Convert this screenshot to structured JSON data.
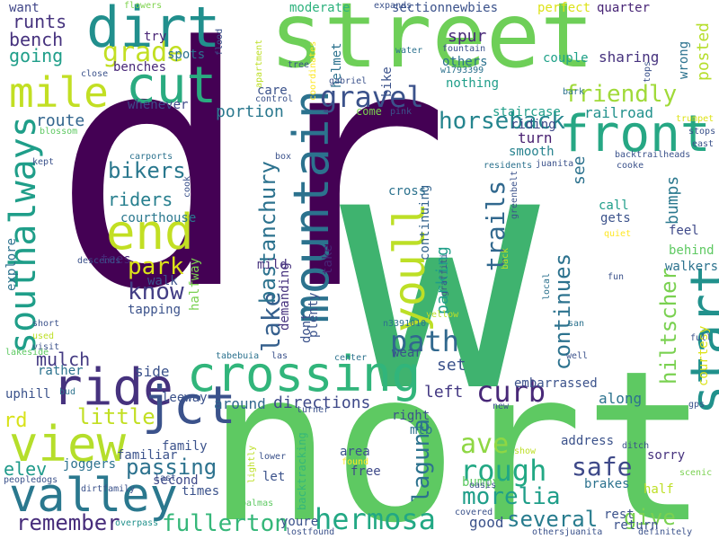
{
  "colors": {
    "background": "#ffffff",
    "palette": [
      "#440154",
      "#3b528b",
      "#21918c",
      "#5ec962",
      "#fde725"
    ]
  },
  "words": [
    {
      "text": "dr",
      "color": "#440154"
    },
    {
      "text": "w",
      "color": "#3fb36f"
    },
    {
      "text": "north",
      "color": "#5ec962"
    },
    {
      "text": "street",
      "color": "#6ecf58"
    },
    {
      "text": "crossing",
      "color": "#31b57b"
    },
    {
      "text": "mountain",
      "color": "#2c728e"
    },
    {
      "text": "front",
      "color": "#26a784"
    },
    {
      "text": "start",
      "color": "#21918c"
    },
    {
      "text": "dirt",
      "color": "#218f8d"
    },
    {
      "text": "cut",
      "color": "#2aab80"
    },
    {
      "text": "mile",
      "color": "#c2df23"
    },
    {
      "text": "end",
      "color": "#c2df23"
    },
    {
      "text": "ride",
      "color": "#46327e"
    },
    {
      "text": "view",
      "color": "#b5de2b"
    },
    {
      "text": "valley",
      "color": "#2a788e"
    },
    {
      "text": "jct",
      "color": "#3b528b"
    },
    {
      "text": "southalways",
      "color": "#1f9e89"
    },
    {
      "text": "youll",
      "color": "#bddf26"
    },
    {
      "text": "gravel",
      "color": "#3b528b"
    },
    {
      "text": "hermosa",
      "color": "#22a884"
    },
    {
      "text": "curb",
      "color": "#482878"
    },
    {
      "text": "rough",
      "color": "#22a884"
    },
    {
      "text": "morelia",
      "color": "#1f9e89"
    },
    {
      "text": "path",
      "color": "#31688e"
    },
    {
      "text": "friendly",
      "color": "#a0da39"
    },
    {
      "text": "grade",
      "color": "#c2df23"
    },
    {
      "text": "horseback",
      "color": "#25858e"
    },
    {
      "text": "fullerton",
      "color": "#35b779"
    },
    {
      "text": "lake",
      "color": "#355f8d"
    },
    {
      "text": "bastanchury",
      "color": "#2c728e"
    },
    {
      "text": "trails",
      "color": "#31688e"
    },
    {
      "text": "park",
      "color": "#dce319"
    },
    {
      "text": "know",
      "color": "#433e85"
    },
    {
      "text": "bikers",
      "color": "#2a788e"
    },
    {
      "text": "little",
      "color": "#c2df23"
    },
    {
      "text": "passing",
      "color": "#2c728e"
    },
    {
      "text": "remember",
      "color": "#472d7b"
    },
    {
      "text": "several",
      "color": "#287c8e"
    },
    {
      "text": "give",
      "color": "#7ad151"
    },
    {
      "text": "safe",
      "color": "#3e4989"
    },
    {
      "text": "ave",
      "color": "#8fd744"
    },
    {
      "text": "laguna",
      "color": "#2c728e"
    },
    {
      "text": "continues",
      "color": "#2c728e"
    },
    {
      "text": "hiltscher",
      "color": "#7ad151"
    },
    {
      "text": "posted",
      "color": "#b5de2b"
    },
    {
      "text": "runts",
      "color": "#46337e"
    },
    {
      "text": "bench",
      "color": "#46327e"
    },
    {
      "text": "going",
      "color": "#1f9e89"
    },
    {
      "text": "riders",
      "color": "#277f8e"
    },
    {
      "text": "mulch",
      "color": "#443a83"
    },
    {
      "text": "rd",
      "color": "#d8e219"
    },
    {
      "text": "elev",
      "color": "#1f9a8a"
    },
    {
      "text": "route",
      "color": "#32658e"
    },
    {
      "text": "portion",
      "color": "#2a788e"
    },
    {
      "text": "moderate",
      "color": "#2db27d"
    },
    {
      "text": "sectionnewbies",
      "color": "#3b528b"
    },
    {
      "text": "perfect",
      "color": "#dde318"
    },
    {
      "text": "quarter",
      "color": "#482576"
    },
    {
      "text": "coordinates",
      "color": "#fde725"
    },
    {
      "text": "expands",
      "color": "#3b528b"
    },
    {
      "text": "flowers",
      "color": "#7fd34e"
    },
    {
      "text": "want",
      "color": "#404688"
    },
    {
      "text": "try",
      "color": "#482475"
    },
    {
      "text": "spots",
      "color": "#2c728e"
    },
    {
      "text": "benches",
      "color": "#482878"
    },
    {
      "text": "whenever",
      "color": "#3e4989"
    },
    {
      "text": "spur",
      "color": "#482878"
    },
    {
      "text": "others",
      "color": "#2c728e"
    },
    {
      "text": "couple",
      "color": "#1fa188"
    },
    {
      "text": "sharing",
      "color": "#46327e"
    },
    {
      "text": "wrong",
      "color": "#2c728e"
    },
    {
      "text": "nothing",
      "color": "#1f9e89"
    },
    {
      "text": "staircase",
      "color": "#1f9e89"
    },
    {
      "text": "railroad",
      "color": "#21918c"
    },
    {
      "text": "riding",
      "color": "#3e4989"
    },
    {
      "text": "turn",
      "color": "#481f70"
    },
    {
      "text": "smooth",
      "color": "#26828e"
    },
    {
      "text": "bumps",
      "color": "#2a788e"
    },
    {
      "text": "cross",
      "color": "#2c728e"
    },
    {
      "text": "continuing",
      "color": "#33638d"
    },
    {
      "text": "parking",
      "color": "#1f9e89"
    },
    {
      "text": "see",
      "color": "#2c728e"
    },
    {
      "text": "call",
      "color": "#1f9e89"
    },
    {
      "text": "gets",
      "color": "#3b528b"
    },
    {
      "text": "feel",
      "color": "#3e4989"
    },
    {
      "text": "behind",
      "color": "#5ec962"
    },
    {
      "text": "walkers",
      "color": "#2c728e"
    },
    {
      "text": "courthouse",
      "color": "#2a788e"
    },
    {
      "text": "tees",
      "color": "#482576"
    },
    {
      "text": "walk",
      "color": "#3b528b"
    },
    {
      "text": "tapping",
      "color": "#3b528b"
    },
    {
      "text": "halfway",
      "color": "#7ad151"
    },
    {
      "text": "demanding",
      "color": "#46327e"
    },
    {
      "text": "mild",
      "color": "#46327e"
    },
    {
      "text": "dont",
      "color": "#3b528b"
    },
    {
      "text": "plenty",
      "color": "#3b528b"
    },
    {
      "text": "take",
      "color": "#482475"
    },
    {
      "text": "set",
      "color": "#3b528b"
    },
    {
      "text": "left",
      "color": "#443983"
    },
    {
      "text": "along",
      "color": "#2c728e"
    },
    {
      "text": "embarrassed",
      "color": "#3b528b"
    },
    {
      "text": "courtesy",
      "color": "#dde318"
    },
    {
      "text": "directions",
      "color": "#3e4989"
    },
    {
      "text": "around",
      "color": "#31688e"
    },
    {
      "text": "side",
      "color": "#3b528b"
    },
    {
      "text": "leeway",
      "color": "#3b528b"
    },
    {
      "text": "uphill",
      "color": "#3b528b"
    },
    {
      "text": "rather",
      "color": "#2c728e"
    },
    {
      "text": "explore",
      "color": "#2c728e"
    },
    {
      "text": "descends",
      "color": "#3b528b"
    },
    {
      "text": "joggers",
      "color": "#2c728e"
    },
    {
      "text": "family",
      "color": "#3b528b"
    },
    {
      "text": "familiar",
      "color": "#3b528b"
    },
    {
      "text": "second",
      "color": "#3e4989"
    },
    {
      "text": "times",
      "color": "#3b528b"
    },
    {
      "text": "youre",
      "color": "#3b528b"
    },
    {
      "text": "good",
      "color": "#3b528b"
    },
    {
      "text": "free",
      "color": "#3e4989"
    },
    {
      "text": "let",
      "color": "#3b528b"
    },
    {
      "text": "area",
      "color": "#3b528b"
    },
    {
      "text": "bumpy",
      "color": "#5ec962"
    },
    {
      "text": "address",
      "color": "#3b528b"
    },
    {
      "text": "sorry",
      "color": "#46327e"
    },
    {
      "text": "brakes",
      "color": "#2c728e"
    },
    {
      "text": "half",
      "color": "#bddf26"
    },
    {
      "text": "rest",
      "color": "#3b528b"
    },
    {
      "text": "return",
      "color": "#3b528b"
    },
    {
      "text": "show",
      "color": "#bddf26"
    },
    {
      "text": "right",
      "color": "#3b528b"
    },
    {
      "text": "mtb",
      "color": "#2c728e"
    },
    {
      "text": "wear",
      "color": "#3b528b"
    },
    {
      "text": "helmet",
      "color": "#2c728e"
    },
    {
      "text": "bike",
      "color": "#3b528b"
    },
    {
      "text": "care",
      "color": "#3b528b"
    },
    {
      "text": "control",
      "color": "#3b528b"
    },
    {
      "text": "come",
      "color": "#7ad151"
    },
    {
      "text": "dirtfamily",
      "color": "#3b528b"
    },
    {
      "text": "short",
      "color": "#3b528b"
    },
    {
      "text": "used",
      "color": "#bddf26"
    },
    {
      "text": "visit",
      "color": "#3b528b"
    },
    {
      "text": "lakeside",
      "color": "#5ec962"
    },
    {
      "text": "bud",
      "color": "#2c728e"
    },
    {
      "text": "peopledogs",
      "color": "#3b528b"
    },
    {
      "text": "overpass",
      "color": "#21918c"
    },
    {
      "text": "lostfound",
      "color": "#3b528b"
    },
    {
      "text": "othersjuanita",
      "color": "#3b528b"
    },
    {
      "text": "definitely",
      "color": "#3b528b"
    },
    {
      "text": "covered",
      "color": "#3b528b"
    },
    {
      "text": "oasis",
      "color": "#3b528b"
    },
    {
      "text": "palmas",
      "color": "#5ec962"
    },
    {
      "text": "lightly",
      "color": "#bddf26"
    },
    {
      "text": "backtracking",
      "color": "#35b779"
    },
    {
      "text": "lower",
      "color": "#3b528b"
    },
    {
      "text": "found",
      "color": "#fde725"
    },
    {
      "text": "last",
      "color": "#3b528b"
    },
    {
      "text": "new",
      "color": "#3b528b"
    },
    {
      "text": "ditch",
      "color": "#3b528b"
    },
    {
      "text": "scenic",
      "color": "#7ad151"
    },
    {
      "text": "gps",
      "color": "#3b528b"
    },
    {
      "text": "full",
      "color": "#3b528b"
    },
    {
      "text": "well",
      "color": "#3b528b"
    },
    {
      "text": "center",
      "color": "#2c728e"
    },
    {
      "text": "las",
      "color": "#3b528b"
    },
    {
      "text": "tabebuia",
      "color": "#2c728e"
    },
    {
      "text": "turner",
      "color": "#3b528b"
    },
    {
      "text": "yellow",
      "color": "#bddf26"
    },
    {
      "text": "n3391010",
      "color": "#2c728e"
    },
    {
      "text": "san",
      "color": "#2c728e"
    },
    {
      "text": "local",
      "color": "#2c728e"
    },
    {
      "text": "fun",
      "color": "#3b528b"
    },
    {
      "text": "back",
      "color": "#bddf26"
    },
    {
      "text": "quiet",
      "color": "#fde725"
    },
    {
      "text": "greenbelt",
      "color": "#3b528b"
    },
    {
      "text": "graffiti",
      "color": "#3b528b"
    },
    {
      "text": "juanita",
      "color": "#3b528b"
    },
    {
      "text": "residents",
      "color": "#2c728e"
    },
    {
      "text": "backtrailheads",
      "color": "#3b528b"
    },
    {
      "text": "cooke",
      "color": "#3b528b"
    },
    {
      "text": "east",
      "color": "#3b528b"
    },
    {
      "text": "stops",
      "color": "#3b528b"
    },
    {
      "text": "trumpet",
      "color": "#dde318"
    },
    {
      "text": "bark",
      "color": "#2c728e"
    },
    {
      "text": "tops",
      "color": "#3b528b"
    },
    {
      "text": "w1793399",
      "color": "#2c728e"
    },
    {
      "text": "fountain",
      "color": "#3b528b"
    },
    {
      "text": "water",
      "color": "#2c728e"
    },
    {
      "text": "tree",
      "color": "#3b528b"
    },
    {
      "text": "gabriel",
      "color": "#3b528b"
    },
    {
      "text": "pink",
      "color": "#3b528b"
    },
    {
      "text": "apartment",
      "color": "#bddf26"
    },
    {
      "text": "flood",
      "color": "#3b528b"
    },
    {
      "text": "close",
      "color": "#3b528b"
    },
    {
      "text": "blossom",
      "color": "#5ec962"
    },
    {
      "text": "kept",
      "color": "#3b528b"
    },
    {
      "text": "carports",
      "color": "#2c728e"
    },
    {
      "text": "box",
      "color": "#3b528b"
    },
    {
      "text": "cook",
      "color": "#3b528b"
    }
  ]
}
